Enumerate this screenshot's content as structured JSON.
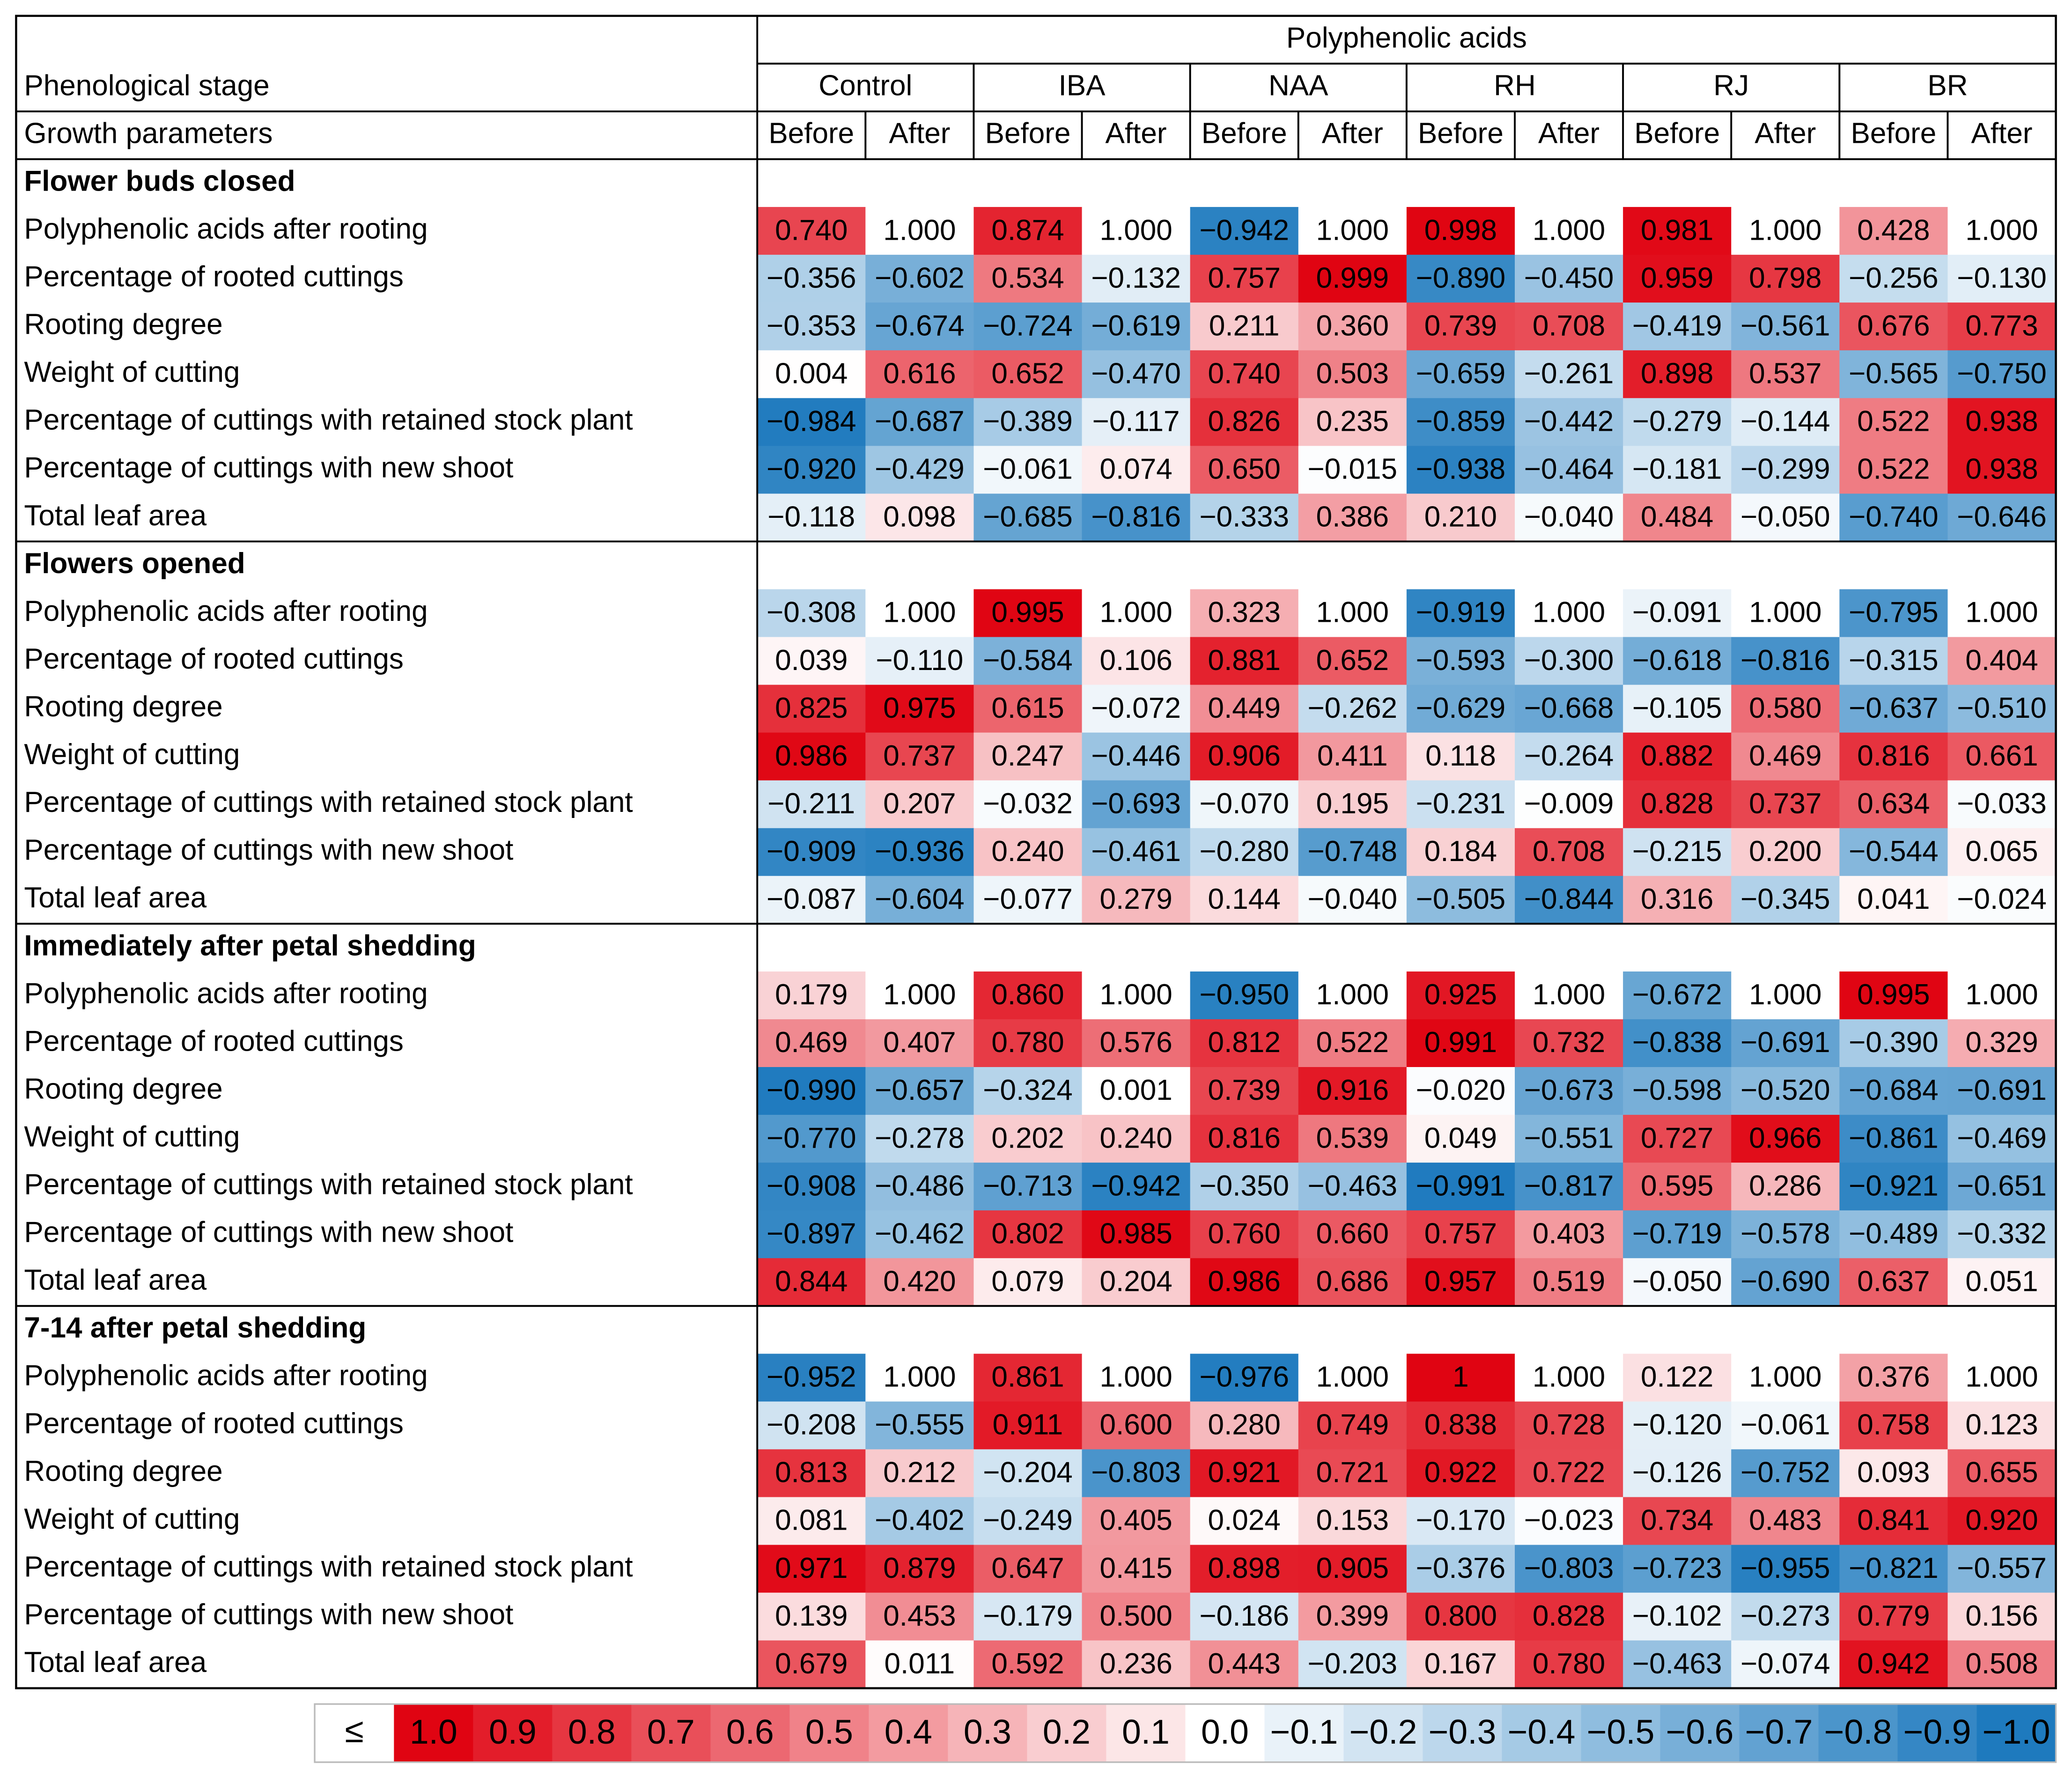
{
  "header": {
    "title": "Polyphenolic acids",
    "stage_label": "Phenological stage",
    "params_label": "Growth parameters",
    "groups": [
      {
        "name": "Control",
        "sub": [
          "Before",
          "After"
        ]
      },
      {
        "name": "IBA",
        "sub": [
          "Before",
          "After"
        ]
      },
      {
        "name": "NAA",
        "sub": [
          "Before",
          "After"
        ]
      },
      {
        "name": "RH",
        "sub": [
          "Before",
          "After"
        ]
      },
      {
        "name": "RJ",
        "sub": [
          "Before",
          "After"
        ]
      },
      {
        "name": "BR",
        "sub": [
          "Before",
          "After"
        ]
      }
    ]
  },
  "sections": [
    {
      "title": "Flower buds closed",
      "rows": [
        {
          "label": "Polyphenolic acids after rooting",
          "cells": [
            "0.740",
            "1.000",
            "0.874",
            "1.000",
            "−0.942",
            "1.000",
            "0.998",
            "1.000",
            "0.981",
            "1.000",
            "0.428",
            "1.000"
          ]
        },
        {
          "label": "Percentage of rooted cuttings",
          "cells": [
            "−0.356",
            "−0.602",
            "0.534",
            "−0.132",
            "0.757",
            "0.999",
            "−0.890",
            "−0.450",
            "0.959",
            "0.798",
            "−0.256",
            "−0.130"
          ]
        },
        {
          "label": "Rooting degree",
          "cells": [
            "−0.353",
            "−0.674",
            "−0.724",
            "−0.619",
            "0.211",
            "0.360",
            "0.739",
            "0.708",
            "−0.419",
            "−0.561",
            "0.676",
            "0.773"
          ]
        },
        {
          "label": "Weight of cutting",
          "cells": [
            "0.004",
            "0.616",
            "0.652",
            "−0.470",
            "0.740",
            "0.503",
            "−0.659",
            "−0.261",
            "0.898",
            "0.537",
            "−0.565",
            "−0.750"
          ]
        },
        {
          "label": "Percentage of cuttings with retained stock plant",
          "cells": [
            "−0.984",
            "−0.687",
            "−0.389",
            "−0.117",
            "0.826",
            "0.235",
            "−0.859",
            "−0.442",
            "−0.279",
            "−0.144",
            "0.522",
            "0.938"
          ]
        },
        {
          "label": "Percentage of cuttings with new shoot",
          "cells": [
            "−0.920",
            "−0.429",
            "−0.061",
            "0.074",
            "0.650",
            "−0.015",
            "−0.938",
            "−0.464",
            "−0.181",
            "−0.299",
            "0.522",
            "0.938"
          ]
        },
        {
          "label": "Total leaf area",
          "cells": [
            "−0.118",
            "0.098",
            "−0.685",
            "−0.816",
            "−0.333",
            "0.386",
            "0.210",
            "−0.040",
            "0.484",
            "−0.050",
            "−0.740",
            "−0.646"
          ]
        }
      ]
    },
    {
      "title": "Flowers opened",
      "rows": [
        {
          "label": "Polyphenolic acids after rooting",
          "cells": [
            "−0.308",
            "1.000",
            "0.995",
            "1.000",
            "0.323",
            "1.000",
            "−0.919",
            "1.000",
            "−0.091",
            "1.000",
            "−0.795",
            "1.000"
          ]
        },
        {
          "label": "Percentage of rooted cuttings",
          "cells": [
            "0.039",
            "−0.110",
            "−0.584",
            "0.106",
            "0.881",
            "0.652",
            "−0.593",
            "−0.300",
            "−0.618",
            "−0.816",
            "−0.315",
            "0.404"
          ]
        },
        {
          "label": "Rooting degree",
          "cells": [
            "0.825",
            "0.975",
            "0.615",
            "−0.072",
            "0.449",
            "−0.262",
            "−0.629",
            "−0.668",
            "−0.105",
            "0.580",
            "−0.637",
            "−0.510"
          ]
        },
        {
          "label": "Weight of cutting",
          "cells": [
            "0.986",
            "0.737",
            "0.247",
            "−0.446",
            "0.906",
            "0.411",
            "0.118",
            "−0.264",
            "0.882",
            "0.469",
            "0.816",
            "0.661"
          ]
        },
        {
          "label": "Percentage of cuttings with retained stock plant",
          "cells": [
            "−0.211",
            "0.207",
            "−0.032",
            "−0.693",
            "−0.070",
            "0.195",
            "−0.231",
            "−0.009",
            "0.828",
            "0.737",
            "0.634",
            "−0.033"
          ]
        },
        {
          "label": "Percentage of cuttings with new shoot",
          "cells": [
            "−0.909",
            "−0.936",
            "0.240",
            "−0.461",
            "−0.280",
            "−0.748",
            "0.184",
            "0.708",
            "−0.215",
            "0.200",
            "−0.544",
            "0.065"
          ]
        },
        {
          "label": "Total leaf area",
          "cells": [
            "−0.087",
            "−0.604",
            "−0.077",
            "0.279",
            "0.144",
            "−0.040",
            "−0.505",
            "−0.844",
            "0.316",
            "−0.345",
            "0.041",
            "−0.024"
          ]
        }
      ]
    },
    {
      "title": "Immediately after petal shedding",
      "rows": [
        {
          "label": "Polyphenolic acids after rooting",
          "cells": [
            "0.179",
            "1.000",
            "0.860",
            "1.000",
            "−0.950",
            "1.000",
            "0.925",
            "1.000",
            "−0.672",
            "1.000",
            "0.995",
            "1.000"
          ]
        },
        {
          "label": "Percentage of rooted cuttings",
          "cells": [
            "0.469",
            "0.407",
            "0.780",
            "0.576",
            "0.812",
            "0.522",
            "0.991",
            "0.732",
            "−0.838",
            "−0.691",
            "−0.390",
            "0.329"
          ]
        },
        {
          "label": "Rooting degree",
          "cells": [
            "−0.990",
            "−0.657",
            "−0.324",
            "0.001",
            "0.739",
            "0.916",
            "−0.020",
            "−0.673",
            "−0.598",
            "−0.520",
            "−0.684",
            "−0.691"
          ]
        },
        {
          "label": "Weight of cutting",
          "cells": [
            "−0.770",
            "−0.278",
            "0.202",
            "0.240",
            "0.816",
            "0.539",
            "0.049",
            "−0.551",
            "0.727",
            "0.966",
            "−0.861",
            "−0.469"
          ]
        },
        {
          "label": "Percentage of cuttings with retained stock plant",
          "cells": [
            "−0.908",
            "−0.486",
            "−0.713",
            "−0.942",
            "−0.350",
            "−0.463",
            "−0.991",
            "−0.817",
            "0.595",
            "0.286",
            "−0.921",
            "−0.651"
          ]
        },
        {
          "label": "Percentage of cuttings with new shoot",
          "cells": [
            "−0.897",
            "−0.462",
            "0.802",
            "0.985",
            "0.760",
            "0.660",
            "0.757",
            "0.403",
            "−0.719",
            "−0.578",
            "−0.489",
            "−0.332"
          ]
        },
        {
          "label": "Total leaf area",
          "cells": [
            "0.844",
            "0.420",
            "0.079",
            "0.204",
            "0.986",
            "0.686",
            "0.957",
            "0.519",
            "−0.050",
            "−0.690",
            "0.637",
            "0.051"
          ]
        }
      ]
    },
    {
      "title": "7-14 after petal shedding",
      "rows": [
        {
          "label": "Polyphenolic acids after rooting",
          "cells": [
            "−0.952",
            "1.000",
            "0.861",
            "1.000",
            "−0.976",
            "1.000",
            "1",
            "1.000",
            "0.122",
            "1.000",
            "0.376",
            "1.000"
          ]
        },
        {
          "label": "Percentage of rooted cuttings",
          "cells": [
            "−0.208",
            "−0.555",
            "0.911",
            "0.600",
            "0.280",
            "0.749",
            "0.838",
            "0.728",
            "−0.120",
            "−0.061",
            "0.758",
            "0.123"
          ]
        },
        {
          "label": "Rooting degree",
          "cells": [
            "0.813",
            "0.212",
            "−0.204",
            "−0.803",
            "0.921",
            "0.721",
            "0.922",
            "0.722",
            "−0.126",
            "−0.752",
            "0.093",
            "0.655"
          ]
        },
        {
          "label": "Weight of cutting",
          "cells": [
            "0.081",
            "−0.402",
            "−0.249",
            "0.405",
            "0.024",
            "0.153",
            "−0.170",
            "−0.023",
            "0.734",
            "0.483",
            "0.841",
            "0.920"
          ]
        },
        {
          "label": "Percentage of cuttings with retained stock plant",
          "cells": [
            "0.971",
            "0.879",
            "0.647",
            "0.415",
            "0.898",
            "0.905",
            "−0.376",
            "−0.803",
            "−0.723",
            "−0.955",
            "−0.821",
            "−0.557"
          ]
        },
        {
          "label": "Percentage of cuttings with new shoot",
          "cells": [
            "0.139",
            "0.453",
            "−0.179",
            "0.500",
            "−0.186",
            "0.399",
            "0.800",
            "0.828",
            "−0.102",
            "−0.273",
            "0.779",
            "0.156"
          ]
        },
        {
          "label": "Total leaf area",
          "cells": [
            "0.679",
            "0.011",
            "0.592",
            "0.236",
            "0.443",
            "−0.203",
            "0.167",
            "0.780",
            "−0.463",
            "−0.074",
            "0.942",
            "0.508"
          ]
        }
      ]
    }
  ],
  "legend": {
    "symbol": "≤",
    "labels": [
      "1.0",
      "0.9",
      "0.8",
      "0.7",
      "0.6",
      "0.5",
      "0.4",
      "0.3",
      "0.2",
      "0.1",
      "0.0",
      "−0.1",
      "−0.2",
      "−0.3",
      "−0.4",
      "−0.5",
      "−0.6",
      "−0.7",
      "−0.8",
      "−0.9",
      "−1.0"
    ]
  }
}
